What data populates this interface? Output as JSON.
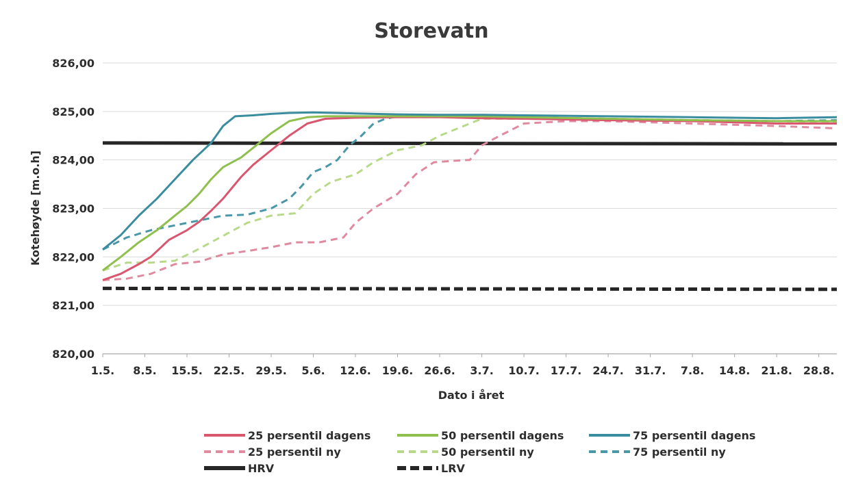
{
  "chart_data": {
    "type": "line",
    "title": "Storevatn",
    "xlabel": "Dato i året",
    "ylabel": "Kotehøyde [m.o.h]",
    "ylim": [
      820,
      826
    ],
    "yticks": [
      "820,00",
      "821,00",
      "822,00",
      "823,00",
      "824,00",
      "825,00",
      "826,00"
    ],
    "x_tick_labels": [
      "1.5.",
      "8.5.",
      "15.5.",
      "22.5.",
      "29.5.",
      "5.6.",
      "12.6.",
      "19.6.",
      "26.6.",
      "3.7.",
      "10.7.",
      "17.7.",
      "24.7.",
      "31.7.",
      "7.8.",
      "14.8.",
      "21.8.",
      "28.8."
    ],
    "x_tick_day_offsets": [
      0,
      7,
      14,
      21,
      28,
      35,
      42,
      49,
      56,
      63,
      70,
      77,
      84,
      91,
      98,
      105,
      112,
      119
    ],
    "x_range_days": [
      0,
      122
    ],
    "grid": "horizontal",
    "legend_position": "bottom",
    "series": [
      {
        "name": "25 persentil dagens",
        "color": "#d9566f",
        "style": "solid",
        "x": [
          0,
          3,
          6,
          8,
          11,
          14,
          16,
          18,
          20,
          23,
          25,
          28,
          31,
          34,
          37,
          42,
          49,
          56,
          63,
          70,
          84,
          98,
          112,
          122
        ],
        "values": [
          821.52,
          821.65,
          821.85,
          822.0,
          822.35,
          822.55,
          822.72,
          822.95,
          823.2,
          823.65,
          823.9,
          824.2,
          824.5,
          824.75,
          824.85,
          824.87,
          824.88,
          824.88,
          824.86,
          824.85,
          824.82,
          824.8,
          824.75,
          824.75
        ]
      },
      {
        "name": "50 persentil dagens",
        "color": "#8fbf4d",
        "style": "solid",
        "x": [
          0,
          3,
          6,
          9,
          12,
          14,
          16,
          18,
          20,
          23,
          26,
          28,
          31,
          34,
          37,
          42,
          49,
          56,
          63,
          70,
          84,
          98,
          112,
          122
        ],
        "values": [
          821.72,
          822.0,
          822.3,
          822.55,
          822.85,
          823.05,
          823.3,
          823.6,
          823.85,
          824.05,
          824.35,
          824.55,
          824.8,
          824.88,
          824.9,
          824.9,
          824.9,
          824.9,
          824.9,
          824.88,
          824.85,
          824.82,
          824.8,
          824.8
        ]
      },
      {
        "name": "75 persentil dagens",
        "color": "#3a8d9e",
        "style": "solid",
        "x": [
          0,
          3,
          6,
          9,
          12,
          15,
          18,
          20,
          22,
          25,
          28,
          31,
          35,
          42,
          49,
          56,
          63,
          70,
          84,
          98,
          112,
          122
        ],
        "values": [
          822.15,
          822.45,
          822.85,
          823.2,
          823.6,
          824.0,
          824.35,
          824.7,
          824.9,
          824.92,
          824.95,
          824.97,
          824.98,
          824.96,
          824.94,
          824.93,
          824.93,
          824.92,
          824.9,
          824.88,
          824.86,
          824.88
        ]
      },
      {
        "name": "25 persentil ny",
        "color": "#e08aa0",
        "style": "dashed",
        "x": [
          0,
          4,
          8,
          12,
          16,
          20,
          24,
          28,
          32,
          36,
          40,
          42,
          45,
          49,
          52,
          55,
          58,
          61,
          63,
          66,
          70,
          77,
          84,
          98,
          112,
          122
        ],
        "values": [
          821.52,
          821.55,
          821.65,
          821.85,
          821.9,
          822.05,
          822.12,
          822.2,
          822.3,
          822.3,
          822.4,
          822.7,
          823.0,
          823.3,
          823.7,
          823.95,
          823.98,
          824.0,
          824.3,
          824.5,
          824.75,
          824.8,
          824.8,
          824.75,
          824.7,
          824.65
        ]
      },
      {
        "name": "50 persentil ny",
        "color": "#b9d98a",
        "style": "dashed",
        "x": [
          0,
          4,
          8,
          12,
          15,
          18,
          21,
          24,
          28,
          32,
          35,
          38,
          42,
          45,
          49,
          53,
          56,
          60,
          63,
          70,
          84,
          98,
          112,
          122
        ],
        "values": [
          821.72,
          821.88,
          821.88,
          821.92,
          822.1,
          822.3,
          822.5,
          822.7,
          822.85,
          822.9,
          823.3,
          823.55,
          823.7,
          823.95,
          824.2,
          824.3,
          824.5,
          824.7,
          824.85,
          824.85,
          824.85,
          824.82,
          824.8,
          824.78
        ]
      },
      {
        "name": "75 persentil ny",
        "color": "#4a97aa",
        "style": "dashed",
        "x": [
          0,
          4,
          8,
          12,
          16,
          20,
          24,
          28,
          31,
          33,
          35,
          37,
          39,
          41,
          43,
          45,
          47,
          49,
          56,
          63,
          70,
          84,
          98,
          112,
          122
        ],
        "values": [
          822.15,
          822.4,
          822.55,
          822.65,
          822.75,
          822.85,
          822.87,
          823.0,
          823.2,
          823.45,
          823.75,
          823.85,
          824.0,
          824.3,
          824.5,
          824.75,
          824.85,
          824.9,
          824.92,
          824.9,
          824.88,
          824.85,
          824.82,
          824.8,
          824.82
        ]
      },
      {
        "name": "HRV",
        "color": "#262626",
        "style": "solid-thick",
        "x": [
          0,
          122
        ],
        "values": [
          824.35,
          824.33
        ]
      },
      {
        "name": "LRV",
        "color": "#262626",
        "style": "dashed-thick",
        "x": [
          0,
          122
        ],
        "values": [
          821.35,
          821.33
        ]
      }
    ]
  }
}
